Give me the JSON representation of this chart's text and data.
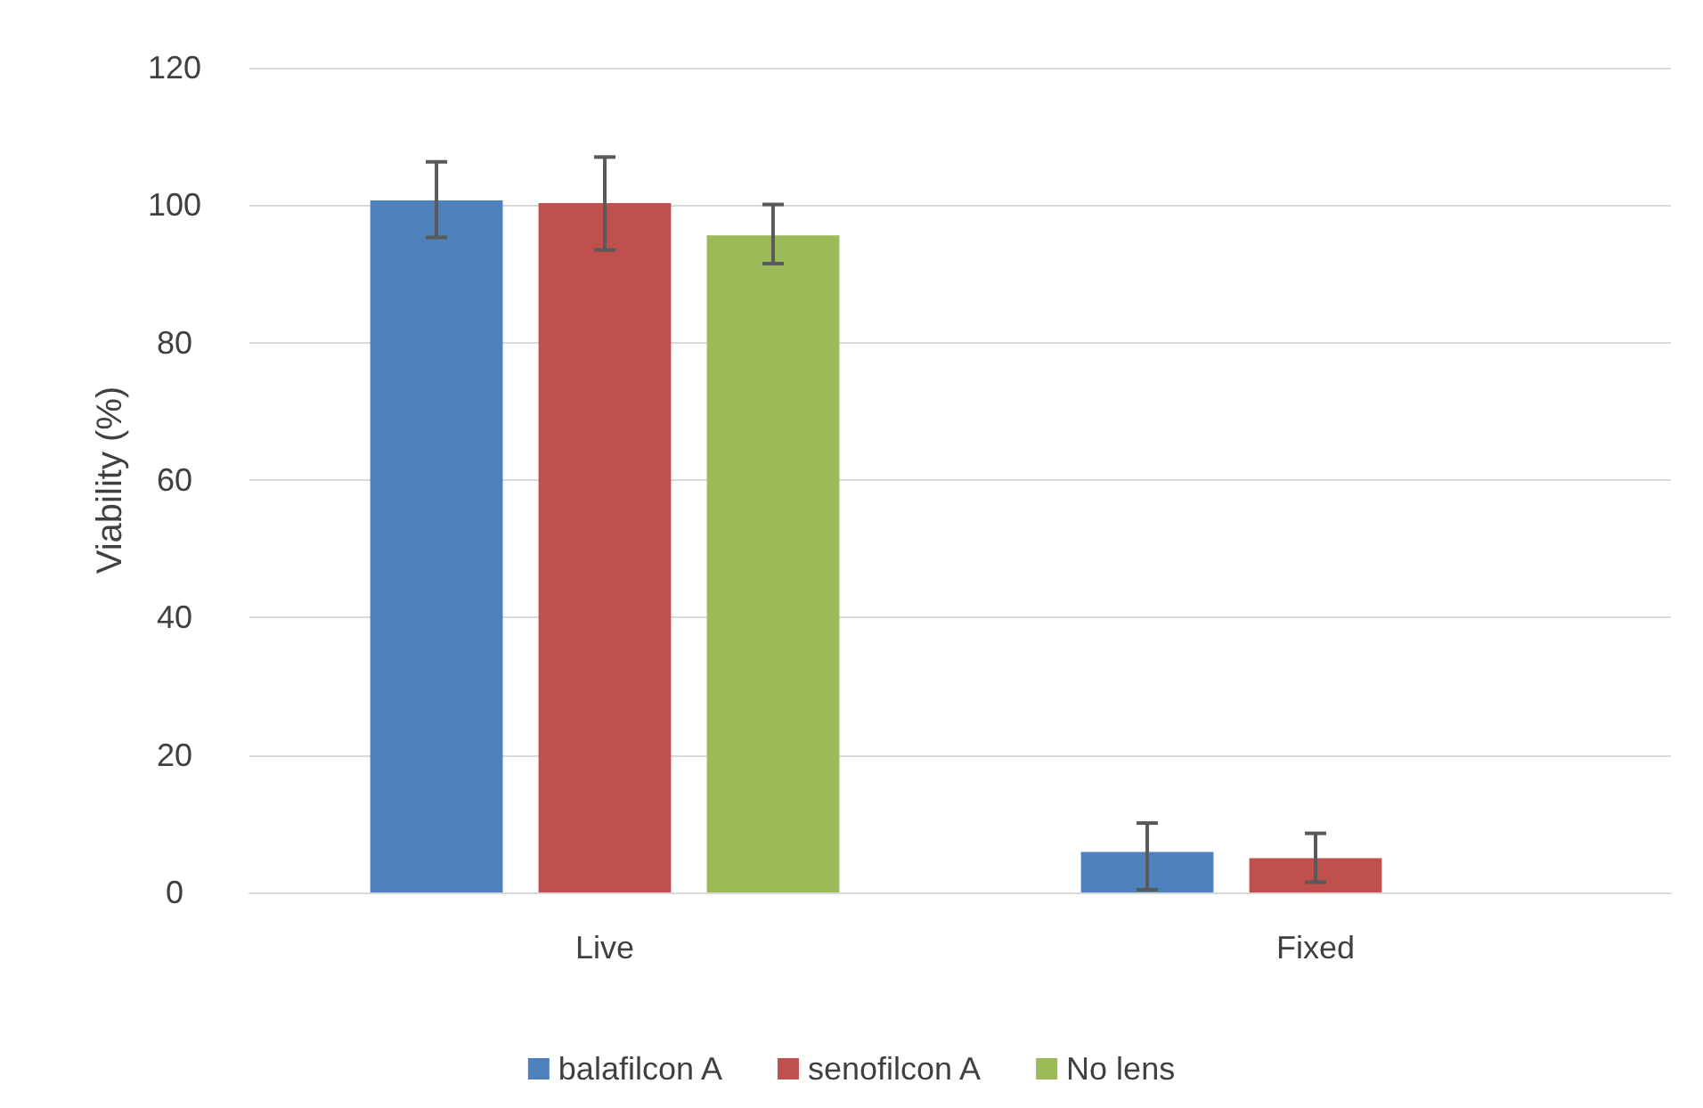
{
  "chart_data": {
    "type": "bar",
    "ylabel": "Viability (%)",
    "categories": [
      "Live",
      "Fixed"
    ],
    "series": [
      {
        "name": "balafilcon A",
        "color": "#4f81bd",
        "values": [
          100.7,
          5.9
        ],
        "errors": [
          [
            95.3,
            106.3
          ],
          [
            0.4,
            10.1
          ]
        ]
      },
      {
        "name": "senofilcon A",
        "color": "#c0504d",
        "values": [
          100.3,
          5.0
        ],
        "errors": [
          [
            93.5,
            107.0
          ],
          [
            1.5,
            8.6
          ]
        ]
      },
      {
        "name": "No lens",
        "color": "#9bbb59",
        "values": [
          95.6,
          null
        ],
        "errors": [
          [
            91.5,
            100.1
          ],
          null
        ]
      }
    ],
    "ylim": [
      0,
      120
    ],
    "yticks": [
      0,
      20,
      40,
      60,
      80,
      100,
      120
    ],
    "grid": "y",
    "legend": "bottom"
  }
}
